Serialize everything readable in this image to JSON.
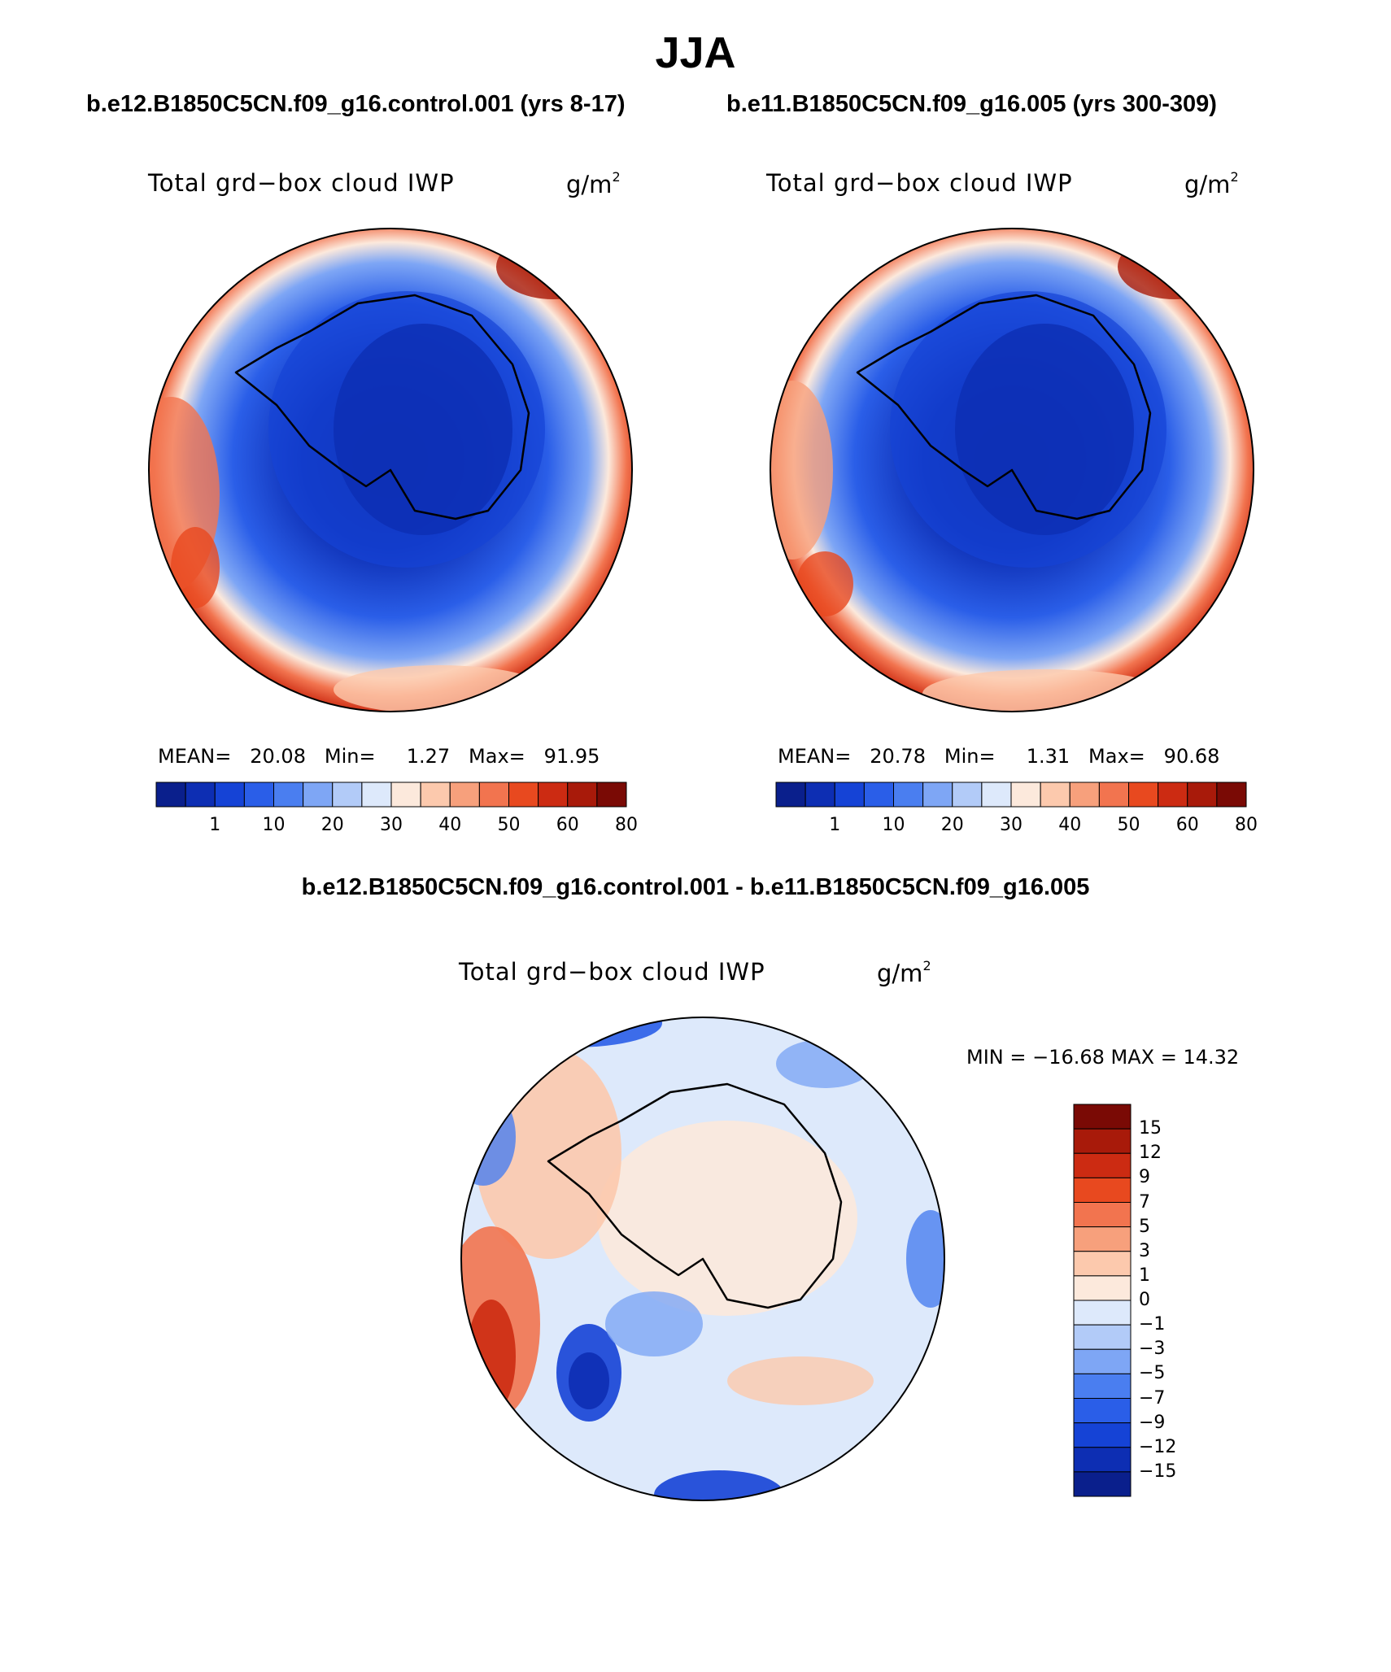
{
  "title": "JJA",
  "panels": [
    {
      "case": "b.e12.B1850C5CN.f09_g16.control.001 (yrs 8-17)",
      "variable": "Total grd−box cloud IWP",
      "units": "g/m",
      "units_exp": "2",
      "stats": {
        "mean_label": "MEAN=",
        "mean": "20.08",
        "min_label": "Min=",
        "min": "1.27",
        "max_label": "Max=",
        "max": "91.95"
      }
    },
    {
      "case": "b.e11.B1850C5CN.f09_g16.005 (yrs 300-309)",
      "variable": "Total grd−box cloud IWP",
      "units": "g/m",
      "units_exp": "2",
      "stats": {
        "mean_label": "MEAN=",
        "mean": "20.78",
        "min_label": "Min=",
        "min": "1.31",
        "max_label": "Max=",
        "max": "90.68"
      }
    }
  ],
  "difference": {
    "title": "b.e12.B1850C5CN.f09_g16.control.001 - b.e11.B1850C5CN.f09_g16.005",
    "variable": "Total grd−box cloud IWP",
    "units": "g/m",
    "units_exp": "2",
    "stats_text": "MIN = −16.68 MAX =   14.32"
  },
  "colorbar_abs": {
    "colors": [
      "#0a1f8c",
      "#0d2eb3",
      "#1543d6",
      "#2a5ee8",
      "#4a7ef0",
      "#7ea6f5",
      "#b2cbf8",
      "#dde9fb",
      "#fce9dc",
      "#fcc9ad",
      "#f7a07c",
      "#f2744f",
      "#e8491f",
      "#cc2b12",
      "#a81a0a",
      "#7a0a05"
    ],
    "labels": [
      "1",
      "10",
      "20",
      "30",
      "40",
      "50",
      "60",
      "80"
    ]
  },
  "colorbar_diff": {
    "colors": [
      "#7a0a05",
      "#a81a0a",
      "#cc2b12",
      "#e8491f",
      "#f2744f",
      "#f7a07c",
      "#fcc9ad",
      "#fce9dc",
      "#dde9fb",
      "#b2cbf8",
      "#7ea6f5",
      "#4a7ef0",
      "#2a5ee8",
      "#1543d6",
      "#0d2eb3",
      "#0a1f8c"
    ],
    "labels": [
      "15",
      "12",
      "9",
      "7",
      "5",
      "3",
      "1",
      "0",
      "−1",
      "−3",
      "−5",
      "−7",
      "−9",
      "−12",
      "−15"
    ]
  }
}
